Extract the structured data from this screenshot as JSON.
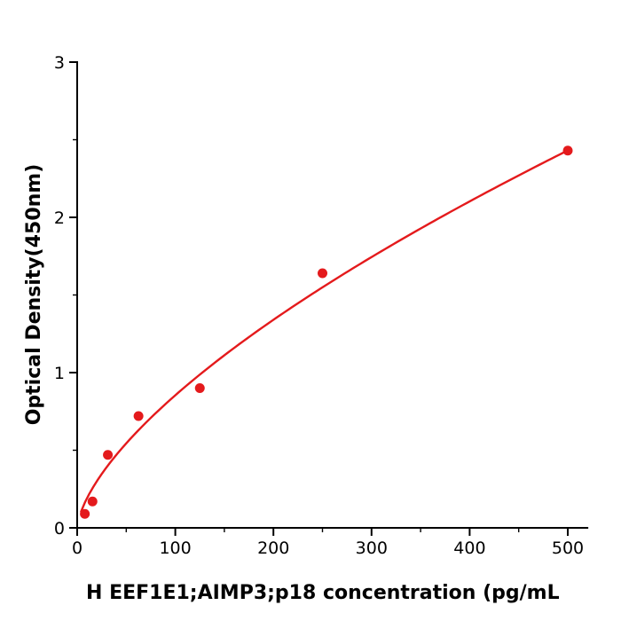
{
  "figure": {
    "x_axis_label": "H  EEF1E1;AIMP3;p18 concentration (pg/mL",
    "y_axis_label": "Optical Density(450nm)"
  },
  "chart_data": {
    "type": "scatter",
    "title": "",
    "xlabel": "H  EEF1E1;AIMP3;p18 concentration (pg/mL",
    "ylabel": "Optical Density(450nm)",
    "x": [
      7.8,
      15.6,
      31.25,
      62.5,
      125,
      250,
      500
    ],
    "y": [
      0.09,
      0.17,
      0.47,
      0.72,
      0.9,
      1.64,
      2.43
    ],
    "xlim": [
      0,
      520
    ],
    "ylim": [
      0,
      3
    ],
    "x_ticks": [
      0,
      100,
      200,
      300,
      400,
      500
    ],
    "y_ticks": [
      0,
      1,
      2,
      3
    ],
    "x_minor_ticks": [
      50,
      150,
      250,
      350,
      450
    ],
    "y_minor_ticks": [
      0.5,
      1.5,
      2.5
    ],
    "grid": false,
    "legend": "none",
    "point_color": "#e41a1c",
    "curve_color": "#e41a1c",
    "axis_color": "#000000",
    "curve_fit": {
      "type": "power",
      "a": 0.0428,
      "b": 0.65,
      "x_start": 4,
      "x_end": 500
    }
  }
}
